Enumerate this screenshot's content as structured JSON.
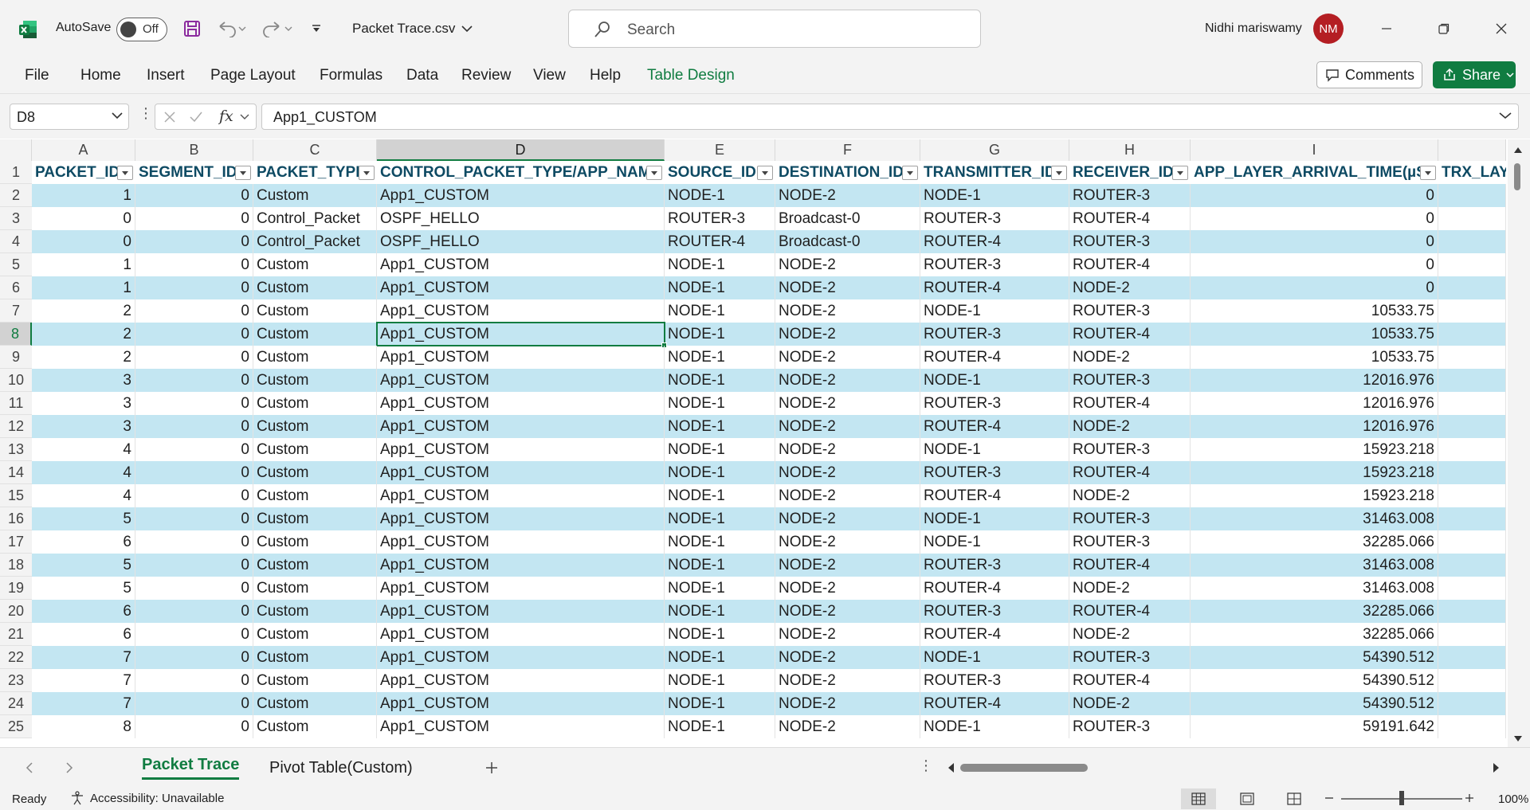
{
  "title_bar": {
    "app_icon": "excel-icon",
    "autosave_label": "AutoSave",
    "autosave_state": "Off",
    "filename": "Packet Trace.csv",
    "search_placeholder": "Search",
    "user_name": "Nidhi mariswamy",
    "user_initials": "NM"
  },
  "ribbon": {
    "tabs": [
      "File",
      "Home",
      "Insert",
      "Page Layout",
      "Formulas",
      "Data",
      "Review",
      "View",
      "Help",
      "Table Design"
    ],
    "comments_label": "Comments",
    "share_label": "Share"
  },
  "formula_bar": {
    "name_box": "D8",
    "fx_label": "fx",
    "content": "App1_CUSTOM"
  },
  "grid": {
    "column_letters": [
      "A",
      "B",
      "C",
      "D",
      "E",
      "F",
      "G",
      "H",
      "I"
    ],
    "selected_column": "D",
    "selected_row": 8,
    "headers": [
      "PACKET_ID",
      "SEGMENT_ID",
      "PACKET_TYPE",
      "CONTROL_PACKET_TYPE/APP_NAME",
      "SOURCE_ID",
      "DESTINATION_ID",
      "TRANSMITTER_ID",
      "RECEIVER_ID",
      "APP_LAYER_ARRIVAL_TIME(µS)",
      "TRX_LAYI"
    ],
    "rows": [
      [
        "2",
        "1",
        "0",
        "Custom",
        "App1_CUSTOM",
        "NODE-1",
        "NODE-2",
        "NODE-1",
        "ROUTER-3",
        "0"
      ],
      [
        "3",
        "0",
        "0",
        "Control_Packet",
        "OSPF_HELLO",
        "ROUTER-3",
        "Broadcast-0",
        "ROUTER-3",
        "ROUTER-4",
        "0"
      ],
      [
        "4",
        "0",
        "0",
        "Control_Packet",
        "OSPF_HELLO",
        "ROUTER-4",
        "Broadcast-0",
        "ROUTER-4",
        "ROUTER-3",
        "0"
      ],
      [
        "5",
        "1",
        "0",
        "Custom",
        "App1_CUSTOM",
        "NODE-1",
        "NODE-2",
        "ROUTER-3",
        "ROUTER-4",
        "0"
      ],
      [
        "6",
        "1",
        "0",
        "Custom",
        "App1_CUSTOM",
        "NODE-1",
        "NODE-2",
        "ROUTER-4",
        "NODE-2",
        "0"
      ],
      [
        "7",
        "2",
        "0",
        "Custom",
        "App1_CUSTOM",
        "NODE-1",
        "NODE-2",
        "NODE-1",
        "ROUTER-3",
        "10533.75"
      ],
      [
        "8",
        "2",
        "0",
        "Custom",
        "App1_CUSTOM",
        "NODE-1",
        "NODE-2",
        "ROUTER-3",
        "ROUTER-4",
        "10533.75"
      ],
      [
        "9",
        "2",
        "0",
        "Custom",
        "App1_CUSTOM",
        "NODE-1",
        "NODE-2",
        "ROUTER-4",
        "NODE-2",
        "10533.75"
      ],
      [
        "10",
        "3",
        "0",
        "Custom",
        "App1_CUSTOM",
        "NODE-1",
        "NODE-2",
        "NODE-1",
        "ROUTER-3",
        "12016.976"
      ],
      [
        "11",
        "3",
        "0",
        "Custom",
        "App1_CUSTOM",
        "NODE-1",
        "NODE-2",
        "ROUTER-3",
        "ROUTER-4",
        "12016.976"
      ],
      [
        "12",
        "3",
        "0",
        "Custom",
        "App1_CUSTOM",
        "NODE-1",
        "NODE-2",
        "ROUTER-4",
        "NODE-2",
        "12016.976"
      ],
      [
        "13",
        "4",
        "0",
        "Custom",
        "App1_CUSTOM",
        "NODE-1",
        "NODE-2",
        "NODE-1",
        "ROUTER-3",
        "15923.218"
      ],
      [
        "14",
        "4",
        "0",
        "Custom",
        "App1_CUSTOM",
        "NODE-1",
        "NODE-2",
        "ROUTER-3",
        "ROUTER-4",
        "15923.218"
      ],
      [
        "15",
        "4",
        "0",
        "Custom",
        "App1_CUSTOM",
        "NODE-1",
        "NODE-2",
        "ROUTER-4",
        "NODE-2",
        "15923.218"
      ],
      [
        "16",
        "5",
        "0",
        "Custom",
        "App1_CUSTOM",
        "NODE-1",
        "NODE-2",
        "NODE-1",
        "ROUTER-3",
        "31463.008"
      ],
      [
        "17",
        "6",
        "0",
        "Custom",
        "App1_CUSTOM",
        "NODE-1",
        "NODE-2",
        "NODE-1",
        "ROUTER-3",
        "32285.066"
      ],
      [
        "18",
        "5",
        "0",
        "Custom",
        "App1_CUSTOM",
        "NODE-1",
        "NODE-2",
        "ROUTER-3",
        "ROUTER-4",
        "31463.008"
      ],
      [
        "19",
        "5",
        "0",
        "Custom",
        "App1_CUSTOM",
        "NODE-1",
        "NODE-2",
        "ROUTER-4",
        "NODE-2",
        "31463.008"
      ],
      [
        "20",
        "6",
        "0",
        "Custom",
        "App1_CUSTOM",
        "NODE-1",
        "NODE-2",
        "ROUTER-3",
        "ROUTER-4",
        "32285.066"
      ],
      [
        "21",
        "6",
        "0",
        "Custom",
        "App1_CUSTOM",
        "NODE-1",
        "NODE-2",
        "ROUTER-4",
        "NODE-2",
        "32285.066"
      ],
      [
        "22",
        "7",
        "0",
        "Custom",
        "App1_CUSTOM",
        "NODE-1",
        "NODE-2",
        "NODE-1",
        "ROUTER-3",
        "54390.512"
      ],
      [
        "23",
        "7",
        "0",
        "Custom",
        "App1_CUSTOM",
        "NODE-1",
        "NODE-2",
        "ROUTER-3",
        "ROUTER-4",
        "54390.512"
      ],
      [
        "24",
        "7",
        "0",
        "Custom",
        "App1_CUSTOM",
        "NODE-1",
        "NODE-2",
        "ROUTER-4",
        "NODE-2",
        "54390.512"
      ],
      [
        "25",
        "8",
        "0",
        "Custom",
        "App1_CUSTOM",
        "NODE-1",
        "NODE-2",
        "NODE-1",
        "ROUTER-3",
        "59191.642"
      ]
    ]
  },
  "sheets": {
    "tabs": [
      "Packet Trace",
      "Pivot Table(Custom)"
    ],
    "active": "Packet Trace"
  },
  "status_bar": {
    "ready": "Ready",
    "accessibility": "Accessibility: Unavailable",
    "zoom": "100%",
    "zoom_fraction": 0.5
  },
  "colors": {
    "brand_green": "#107c41",
    "band_blue": "#c3e6f2",
    "header_text": "#0e4a63",
    "avatar_red": "#b41e23"
  }
}
